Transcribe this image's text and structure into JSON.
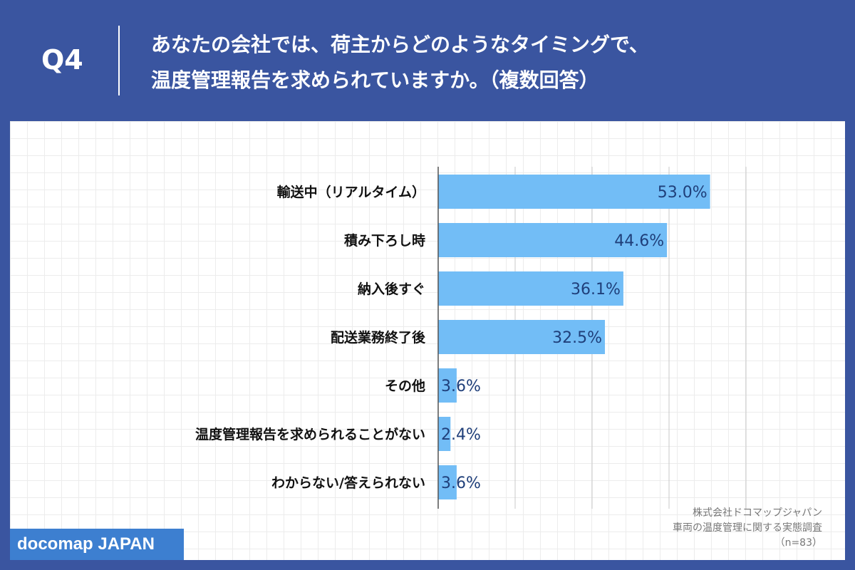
{
  "header": {
    "question_number": "Q4",
    "question_line1": "あなたの会社では、荷主からどのようなタイミングで、",
    "question_line2": "温度管理報告を求められていますか。（複数回答）"
  },
  "chart_data": {
    "type": "bar",
    "orientation": "horizontal",
    "categories": [
      "輸送中（リアルタイム）",
      "積み下ろし時",
      "納入後すぐ",
      "配送業務終了後",
      "その他",
      "温度管理報告を求められることがない",
      "わからない/答えられない"
    ],
    "values": [
      53.0,
      44.6,
      36.1,
      32.5,
      3.6,
      2.4,
      3.6
    ],
    "value_labels": [
      "53.0%",
      "44.6%",
      "36.1%",
      "32.5%",
      "3.6%",
      "2.4%",
      "3.6%"
    ],
    "xlim": [
      0,
      60
    ],
    "grid_step": 15,
    "bar_color": "#72bdf6",
    "label_color": "#1f3f7a"
  },
  "source": {
    "line1": "株式会社ドコマップジャパン",
    "line2": "車両の温度管理に関する実態調査",
    "line3": "（n=83）"
  },
  "brand": {
    "label": "docomap JAPAN"
  },
  "colors": {
    "background": "#3a55a0",
    "panel": "#ffffff",
    "brand_box": "#3d7fd0"
  }
}
